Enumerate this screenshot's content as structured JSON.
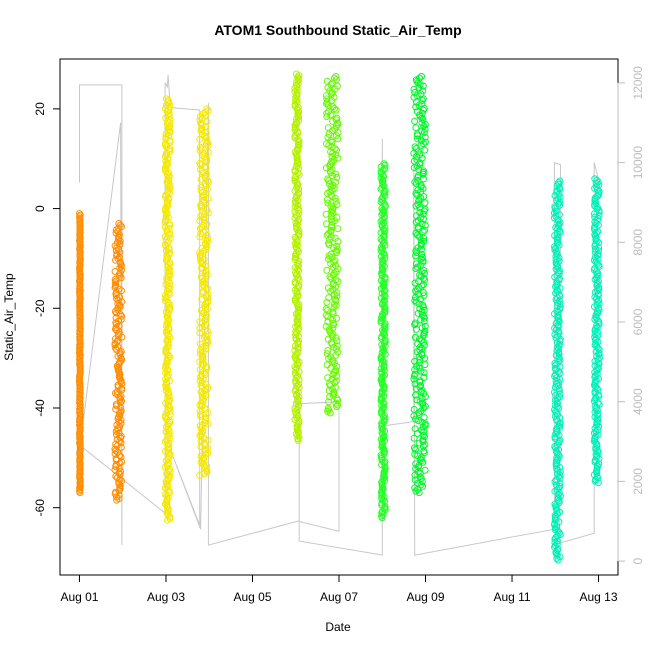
{
  "chart_data": {
    "type": "scatter",
    "title": "ATOM1 Southbound Static_Air_Temp",
    "xlabel": "Date",
    "ylabel": "Static_Air_Temp",
    "y2label": "",
    "x_ticks": [
      "Aug 01",
      "Aug 03",
      "Aug 05",
      "Aug 07",
      "Aug 09",
      "Aug 11",
      "Aug 13"
    ],
    "x_tick_days": [
      1,
      3,
      5,
      7,
      9,
      11,
      13
    ],
    "xlim": [
      0.55,
      13.45
    ],
    "ylim": [
      -73.5,
      30
    ],
    "y_ticks": [
      -60,
      -40,
      -20,
      0,
      20
    ],
    "y2lim": [
      -350,
      12600
    ],
    "y2_ticks": [
      0,
      2000,
      4000,
      6000,
      8000,
      10000,
      12000
    ],
    "y2_tick_color": "#bdbdbd",
    "altitude_color": "#c8c8c8",
    "grid": false,
    "series": [
      {
        "color": "#ff8c00",
        "segments": [
          {
            "x0": 1.0,
            "x1": 1.02,
            "ymin": -57,
            "ymax": -1
          },
          {
            "x0": 1.82,
            "x1": 1.98,
            "ymin": -58.5,
            "ymax": -3
          }
        ]
      },
      {
        "color": "#f4e800",
        "segments": [
          {
            "x0": 2.98,
            "x1": 3.1,
            "ymin": -62.5,
            "ymax": 22
          },
          {
            "x0": 3.78,
            "x1": 3.98,
            "ymin": -53.5,
            "ymax": 20
          }
        ]
      },
      {
        "color": "#b4f000",
        "segments": [
          {
            "x0": 5.98,
            "x1": 6.08,
            "ymin": -46.5,
            "ymax": 27
          }
        ]
      },
      {
        "color": "#66f800",
        "segments": [
          {
            "x0": 6.7,
            "x1": 6.98,
            "ymin": -41,
            "ymax": 26.5
          }
        ]
      },
      {
        "color": "#22ff22",
        "segments": [
          {
            "x0": 7.97,
            "x1": 8.07,
            "ymin": -62,
            "ymax": 9
          }
        ]
      },
      {
        "color": "#00f52a",
        "segments": [
          {
            "x0": 8.73,
            "x1": 9.0,
            "ymin": -57,
            "ymax": 26.5
          }
        ]
      },
      {
        "color": "#00f0b8",
        "segments": [
          {
            "x0": 11.98,
            "x1": 12.12,
            "ymin": -70.5,
            "ymax": 5.5
          },
          {
            "x0": 12.9,
            "x1": 13.02,
            "ymin": -55,
            "ymax": 6
          }
        ]
      }
    ],
    "altitude_track": [
      [
        1.0,
        9500
      ],
      [
        1.0,
        11950
      ],
      [
        1.98,
        11950
      ],
      [
        1.98,
        400
      ],
      [
        1.95,
        11000
      ],
      [
        1.02,
        2900
      ],
      [
        2.98,
        1200
      ],
      [
        2.98,
        12000
      ],
      [
        3.03,
        11900
      ],
      [
        3.05,
        12200
      ],
      [
        3.1,
        11380
      ],
      [
        3.78,
        11320
      ],
      [
        3.78,
        900
      ],
      [
        3.1,
        2800
      ],
      [
        3.8,
        800
      ],
      [
        3.98,
        11500
      ],
      [
        3.98,
        400
      ],
      [
        6.05,
        1000
      ],
      [
        7.0,
        750
      ],
      [
        7.0,
        4000
      ],
      [
        6.08,
        3950
      ],
      [
        6.08,
        500
      ],
      [
        8.0,
        150
      ],
      [
        8.0,
        10600
      ],
      [
        8.05,
        1000
      ],
      [
        8.07,
        3400
      ],
      [
        8.73,
        3500
      ],
      [
        8.73,
        10400
      ],
      [
        8.75,
        150
      ],
      [
        11.98,
        800
      ],
      [
        11.98,
        10000
      ],
      [
        12.12,
        9950
      ],
      [
        12.1,
        450
      ],
      [
        12.9,
        700
      ],
      [
        12.9,
        10000
      ],
      [
        13.02,
        9500
      ]
    ]
  }
}
